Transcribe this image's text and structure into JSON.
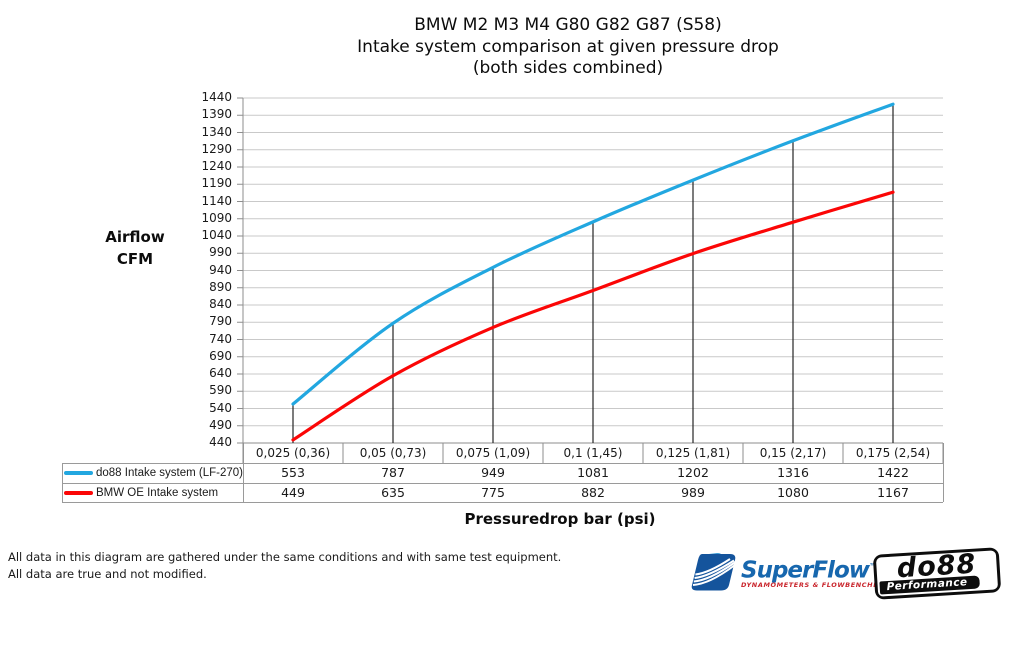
{
  "title": {
    "line1": "BMW M2 M3 M4 G80 G82 G87 (S58)",
    "line2": "Intake system comparison at given pressure drop",
    "line3": "(both sides combined)"
  },
  "y_axis": {
    "title_line1": "Airflow",
    "title_line2": "CFM"
  },
  "x_axis": {
    "title": "Pressuredrop bar (psi)"
  },
  "footer": {
    "line1": "All data in this diagram are gathered under the same conditions and with same test equipment.",
    "line2": "All data are true and not modified."
  },
  "logos": {
    "superflow": {
      "name": "SuperFlow",
      "trademark": "™",
      "subtitle": "DYNAMOMETERS & FLOWBENCHES",
      "text_color": "#1767ae",
      "subtitle_color": "#c9252c"
    },
    "do88": {
      "name": "do88",
      "subtitle": "Performance"
    }
  },
  "chart_data": {
    "type": "line",
    "smooth": true,
    "grid": "horizontal",
    "legend_position": "data-table-left",
    "drop_lines_from_series": 0,
    "title": "BMW M2 M3 M4 G80 G82 G87 (S58) Intake system comparison at given pressure drop (both sides combined)",
    "xlabel": "Pressuredrop bar (psi)",
    "ylabel": "Airflow CFM",
    "categories": [
      "0,025 (0,36)",
      "0,05 (0,73)",
      "0,075 (1,09)",
      "0,1 (1,45)",
      "0,125 (1,81)",
      "0,15 (2,17)",
      "0,175 (2,54)"
    ],
    "series": [
      {
        "name": "do88 Intake system (LF-270)",
        "color": "#22a7e0",
        "values": [
          553,
          787,
          949,
          1081,
          1202,
          1316,
          1422
        ]
      },
      {
        "name": "BMW OE Intake system",
        "color": "#fb0606",
        "values": [
          449,
          635,
          775,
          882,
          989,
          1080,
          1167
        ]
      }
    ],
    "ylim": [
      440,
      1440
    ],
    "y_tick_step": 50,
    "y_ticks": [
      440,
      490,
      540,
      590,
      640,
      690,
      740,
      790,
      840,
      890,
      940,
      990,
      1040,
      1090,
      1140,
      1190,
      1240,
      1290,
      1340,
      1390,
      1440
    ],
    "colors": {
      "gridline": "#c9c9c9",
      "axis": "#8e8e8e",
      "drop_line": "#262626",
      "table_border": "#9a9a9a"
    }
  }
}
